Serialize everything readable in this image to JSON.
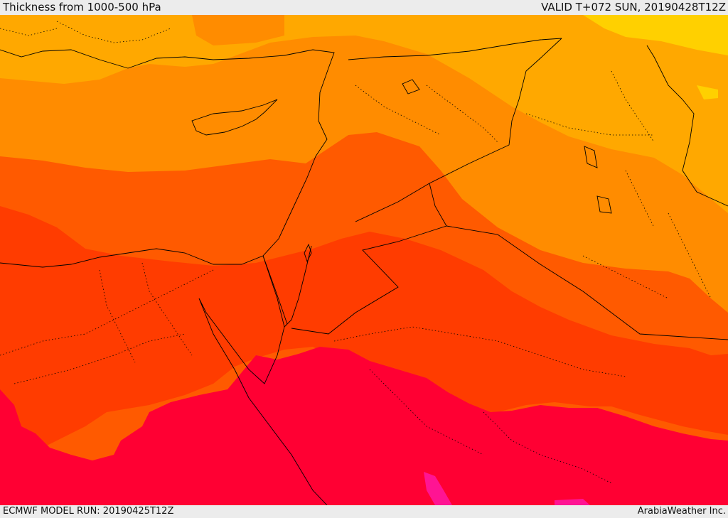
{
  "header": {
    "title": "Thickness from 1000-500 hPa",
    "valid": "VALID T+072 SUN, 20190428T12Z"
  },
  "footer": {
    "model_run": "ECMWF MODEL RUN: 20190425T12Z",
    "credit": "ArabiaWeather Inc."
  },
  "colors": {
    "band_1": "#FFD000",
    "band_2": "#FFA800",
    "band_3": "#FF8C00",
    "band_4": "#FF5A00",
    "band_5": "#FF3C00",
    "band_6": "#FF0033",
    "band_7": "#FF1493",
    "border": "#000000",
    "background": "#ECECEC"
  }
}
